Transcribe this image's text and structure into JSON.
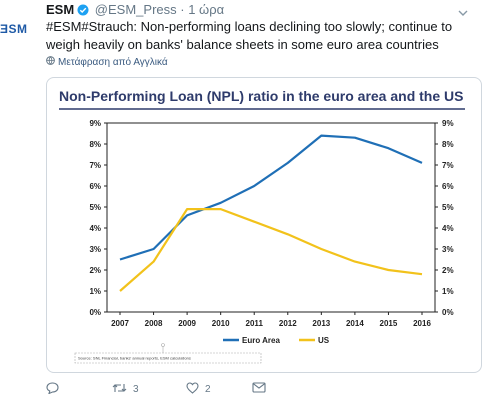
{
  "tweet": {
    "logo_text": "ƎSM",
    "author": "ESM",
    "handle": "@ESM_Press",
    "separator": "·",
    "time": "1 ώρα",
    "text": "#ESM#Strauch: Non-performing loans declining too slowly; continue to weigh heavily on banks' balance sheets in some euro area countries",
    "translate_label": "Μετάφραση από Αγγλικά"
  },
  "actions": {
    "reply_count": "",
    "retweet_count": "3",
    "like_count": "2"
  },
  "colors": {
    "euro_area": "#1f6fb6",
    "us": "#f2c21b",
    "title": "#2e3b6b"
  },
  "chart_data": {
    "type": "line",
    "title": "Non-Performing Loan (NPL) ratio in the euro area and the US",
    "x": [
      "2007",
      "2008",
      "2009",
      "2010",
      "2011",
      "2012",
      "2013",
      "2014",
      "2015",
      "2016"
    ],
    "series": [
      {
        "name": "Euro Area",
        "values": [
          2.5,
          3.0,
          4.6,
          5.2,
          6.0,
          7.1,
          8.4,
          8.3,
          7.8,
          7.1
        ]
      },
      {
        "name": "US",
        "values": [
          1.0,
          2.4,
          4.9,
          4.9,
          4.3,
          3.7,
          3.0,
          2.4,
          2.0,
          1.8
        ]
      }
    ],
    "y_ticks": [
      "0%",
      "1%",
      "2%",
      "3%",
      "4%",
      "5%",
      "6%",
      "7%",
      "8%",
      "9%"
    ],
    "ylim": [
      0,
      9
    ],
    "grid": false,
    "legend": "bottom-center",
    "source": "Source: SNL Financial, banks' annual reports, ESM calculations"
  }
}
